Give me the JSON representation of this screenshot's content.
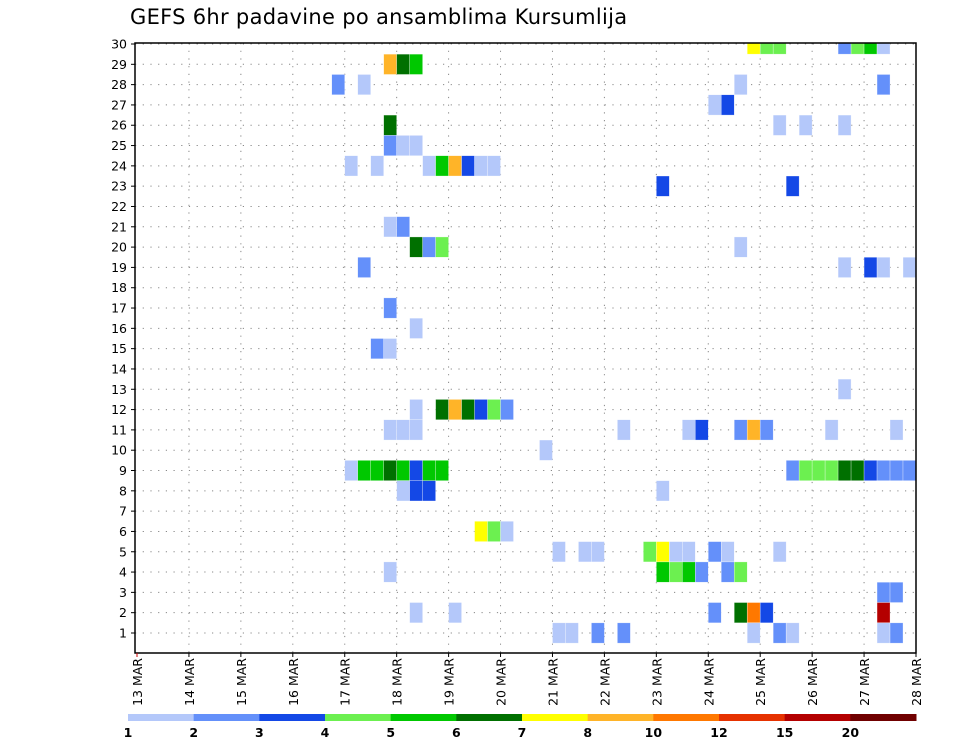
{
  "chart_data": {
    "type": "heatmap",
    "title": "GEFS 6hr padavine po ansamblima Kursumlija",
    "xlabel": "",
    "ylabel": "",
    "x_range_days": [
      13,
      28
    ],
    "x_tick_labels": [
      "13 MAR",
      "14 MAR",
      "15 MAR",
      "16 MAR",
      "17 MAR",
      "18 MAR",
      "19 MAR",
      "20 MAR",
      "21 MAR",
      "22 MAR",
      "23 MAR",
      "24 MAR",
      "25 MAR",
      "26 MAR",
      "27 MAR",
      "28 MAR"
    ],
    "y_range_members": [
      1,
      30
    ],
    "y_tick_labels": [
      "1",
      "2",
      "3",
      "4",
      "5",
      "6",
      "7",
      "8",
      "9",
      "10",
      "11",
      "12",
      "13",
      "14",
      "15",
      "16",
      "17",
      "18",
      "19",
      "20",
      "21",
      "22",
      "23",
      "24",
      "25",
      "26",
      "27",
      "28",
      "29",
      "30"
    ],
    "cell_hours": 6,
    "grid": true,
    "legend": {
      "placement": "bottom",
      "labels": [
        "1",
        "2",
        "3",
        "4",
        "5",
        "6",
        "7",
        "8",
        "10",
        "12",
        "15",
        "20"
      ],
      "colors": [
        "#b4c8fa",
        "#6490fa",
        "#1448e6",
        "#6cf050",
        "#00c800",
        "#007000",
        "#ffff00",
        "#ffb428",
        "#ff7800",
        "#e63200",
        "#b40000",
        "#700000",
        "#6a0000"
      ]
    },
    "cells_format": [
      "member",
      "start_day_of_march",
      "bin_lower_value_mm"
    ],
    "cells": [
      [
        30,
        24.75,
        7
      ],
      [
        30,
        25.0,
        4
      ],
      [
        30,
        25.25,
        4
      ],
      [
        30,
        26.5,
        2
      ],
      [
        30,
        26.75,
        4
      ],
      [
        30,
        27.0,
        5
      ],
      [
        30,
        27.25,
        1
      ],
      [
        29,
        17.75,
        8
      ],
      [
        29,
        18.0,
        6
      ],
      [
        29,
        18.25,
        5
      ],
      [
        28,
        16.75,
        2
      ],
      [
        28,
        17.25,
        1
      ],
      [
        28,
        24.5,
        1
      ],
      [
        28,
        27.25,
        2
      ],
      [
        27,
        24.0,
        1
      ],
      [
        27,
        24.25,
        3
      ],
      [
        26,
        17.75,
        6
      ],
      [
        26,
        25.25,
        1
      ],
      [
        26,
        25.75,
        1
      ],
      [
        26,
        26.5,
        1
      ],
      [
        25,
        17.75,
        2
      ],
      [
        25,
        18.0,
        1
      ],
      [
        25,
        18.25,
        1
      ],
      [
        24,
        17.0,
        1
      ],
      [
        24,
        17.5,
        1
      ],
      [
        24,
        18.5,
        1
      ],
      [
        24,
        18.75,
        5
      ],
      [
        24,
        19.0,
        8
      ],
      [
        24,
        19.25,
        3
      ],
      [
        24,
        19.5,
        1
      ],
      [
        24,
        19.75,
        1
      ],
      [
        23,
        23.0,
        3
      ],
      [
        23,
        25.5,
        3
      ],
      [
        21,
        17.75,
        1
      ],
      [
        21,
        18.0,
        2
      ],
      [
        20,
        18.25,
        6
      ],
      [
        20,
        18.5,
        2
      ],
      [
        20,
        18.75,
        4
      ],
      [
        20,
        24.5,
        1
      ],
      [
        19,
        17.25,
        2
      ],
      [
        19,
        26.5,
        1
      ],
      [
        19,
        27.0,
        3
      ],
      [
        19,
        27.25,
        1
      ],
      [
        19,
        27.75,
        1
      ],
      [
        17,
        17.75,
        2
      ],
      [
        16,
        18.25,
        1
      ],
      [
        15,
        17.5,
        2
      ],
      [
        15,
        17.75,
        1
      ],
      [
        13,
        26.5,
        1
      ],
      [
        12,
        18.25,
        1
      ],
      [
        12,
        18.75,
        6
      ],
      [
        12,
        19.0,
        8
      ],
      [
        12,
        19.25,
        6
      ],
      [
        12,
        19.5,
        3
      ],
      [
        12,
        19.75,
        4
      ],
      [
        12,
        20.0,
        2
      ],
      [
        11,
        17.75,
        1
      ],
      [
        11,
        18.0,
        1
      ],
      [
        11,
        18.25,
        1
      ],
      [
        11,
        22.25,
        1
      ],
      [
        11,
        23.5,
        1
      ],
      [
        11,
        23.75,
        3
      ],
      [
        11,
        24.5,
        2
      ],
      [
        11,
        24.75,
        8
      ],
      [
        11,
        25.0,
        2
      ],
      [
        11,
        26.25,
        1
      ],
      [
        11,
        27.5,
        1
      ],
      [
        10,
        20.75,
        1
      ],
      [
        9,
        17.0,
        1
      ],
      [
        9,
        17.25,
        5
      ],
      [
        9,
        17.5,
        5
      ],
      [
        9,
        17.75,
        6
      ],
      [
        9,
        18.0,
        5
      ],
      [
        9,
        18.25,
        3
      ],
      [
        9,
        18.5,
        5
      ],
      [
        9,
        18.75,
        5
      ],
      [
        9,
        25.5,
        2
      ],
      [
        9,
        25.75,
        4
      ],
      [
        9,
        26.0,
        4
      ],
      [
        9,
        26.25,
        4
      ],
      [
        9,
        26.5,
        6
      ],
      [
        9,
        26.75,
        6
      ],
      [
        9,
        27.0,
        3
      ],
      [
        9,
        27.25,
        2
      ],
      [
        9,
        27.5,
        2
      ],
      [
        9,
        27.75,
        2
      ],
      [
        8,
        18.0,
        1
      ],
      [
        8,
        18.25,
        3
      ],
      [
        8,
        18.5,
        3
      ],
      [
        8,
        23.0,
        1
      ],
      [
        6,
        19.5,
        7
      ],
      [
        6,
        19.75,
        4
      ],
      [
        6,
        20.0,
        1
      ],
      [
        5,
        21.0,
        1
      ],
      [
        5,
        21.5,
        1
      ],
      [
        5,
        21.75,
        1
      ],
      [
        5,
        22.75,
        4
      ],
      [
        5,
        23.0,
        7
      ],
      [
        5,
        23.25,
        1
      ],
      [
        5,
        23.5,
        1
      ],
      [
        5,
        24.0,
        2
      ],
      [
        5,
        24.25,
        1
      ],
      [
        5,
        25.25,
        1
      ],
      [
        4,
        17.75,
        1
      ],
      [
        4,
        23.0,
        5
      ],
      [
        4,
        23.25,
        4
      ],
      [
        4,
        23.5,
        5
      ],
      [
        4,
        23.75,
        2
      ],
      [
        4,
        24.25,
        2
      ],
      [
        4,
        24.5,
        4
      ],
      [
        3,
        27.25,
        2
      ],
      [
        3,
        27.5,
        2
      ],
      [
        2,
        18.25,
        1
      ],
      [
        2,
        19.0,
        1
      ],
      [
        2,
        24.0,
        2
      ],
      [
        2,
        24.5,
        6
      ],
      [
        2,
        24.75,
        10
      ],
      [
        2,
        25.0,
        3
      ],
      [
        2,
        27.25,
        15
      ],
      [
        1,
        21.0,
        1
      ],
      [
        1,
        21.25,
        1
      ],
      [
        1,
        21.75,
        2
      ],
      [
        1,
        22.25,
        2
      ],
      [
        1,
        24.75,
        1
      ],
      [
        1,
        25.25,
        2
      ],
      [
        1,
        25.5,
        1
      ],
      [
        1,
        27.25,
        1
      ],
      [
        1,
        27.5,
        2
      ]
    ]
  }
}
